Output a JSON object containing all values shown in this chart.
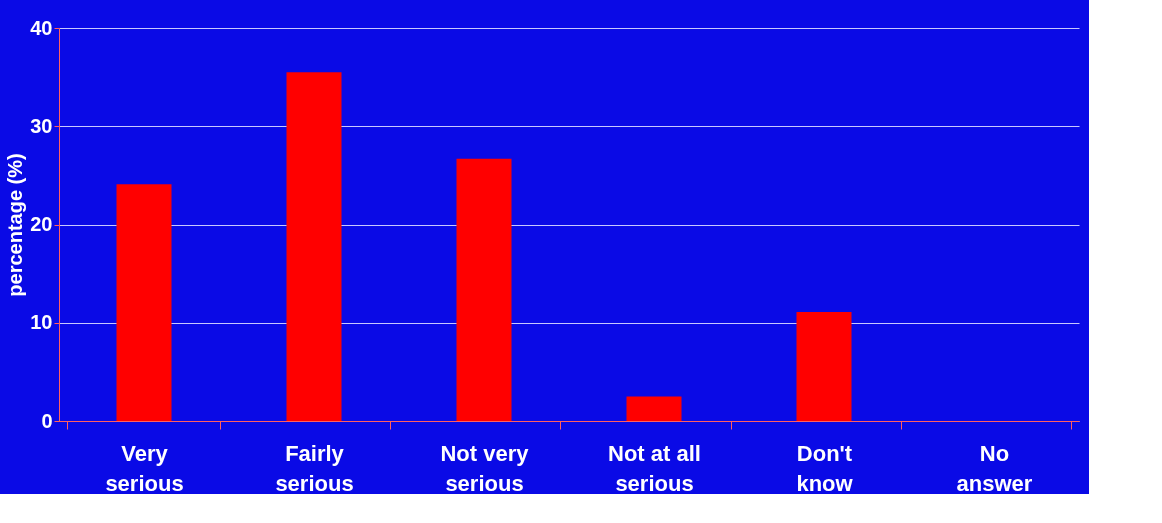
{
  "chart_data": {
    "type": "bar",
    "ylabel": "percentage (%)",
    "categories": [
      "Very serious",
      "Fairly serious",
      "Not very serious",
      "Not at all serious",
      "Don't know",
      "No answer"
    ],
    "values": [
      24.1,
      35.5,
      26.7,
      2.5,
      11.1,
      0
    ],
    "color": "#ff0000",
    "ylim": [
      0,
      40
    ],
    "yticks": [
      0,
      10,
      20,
      30,
      40
    ],
    "grid": "y"
  }
}
